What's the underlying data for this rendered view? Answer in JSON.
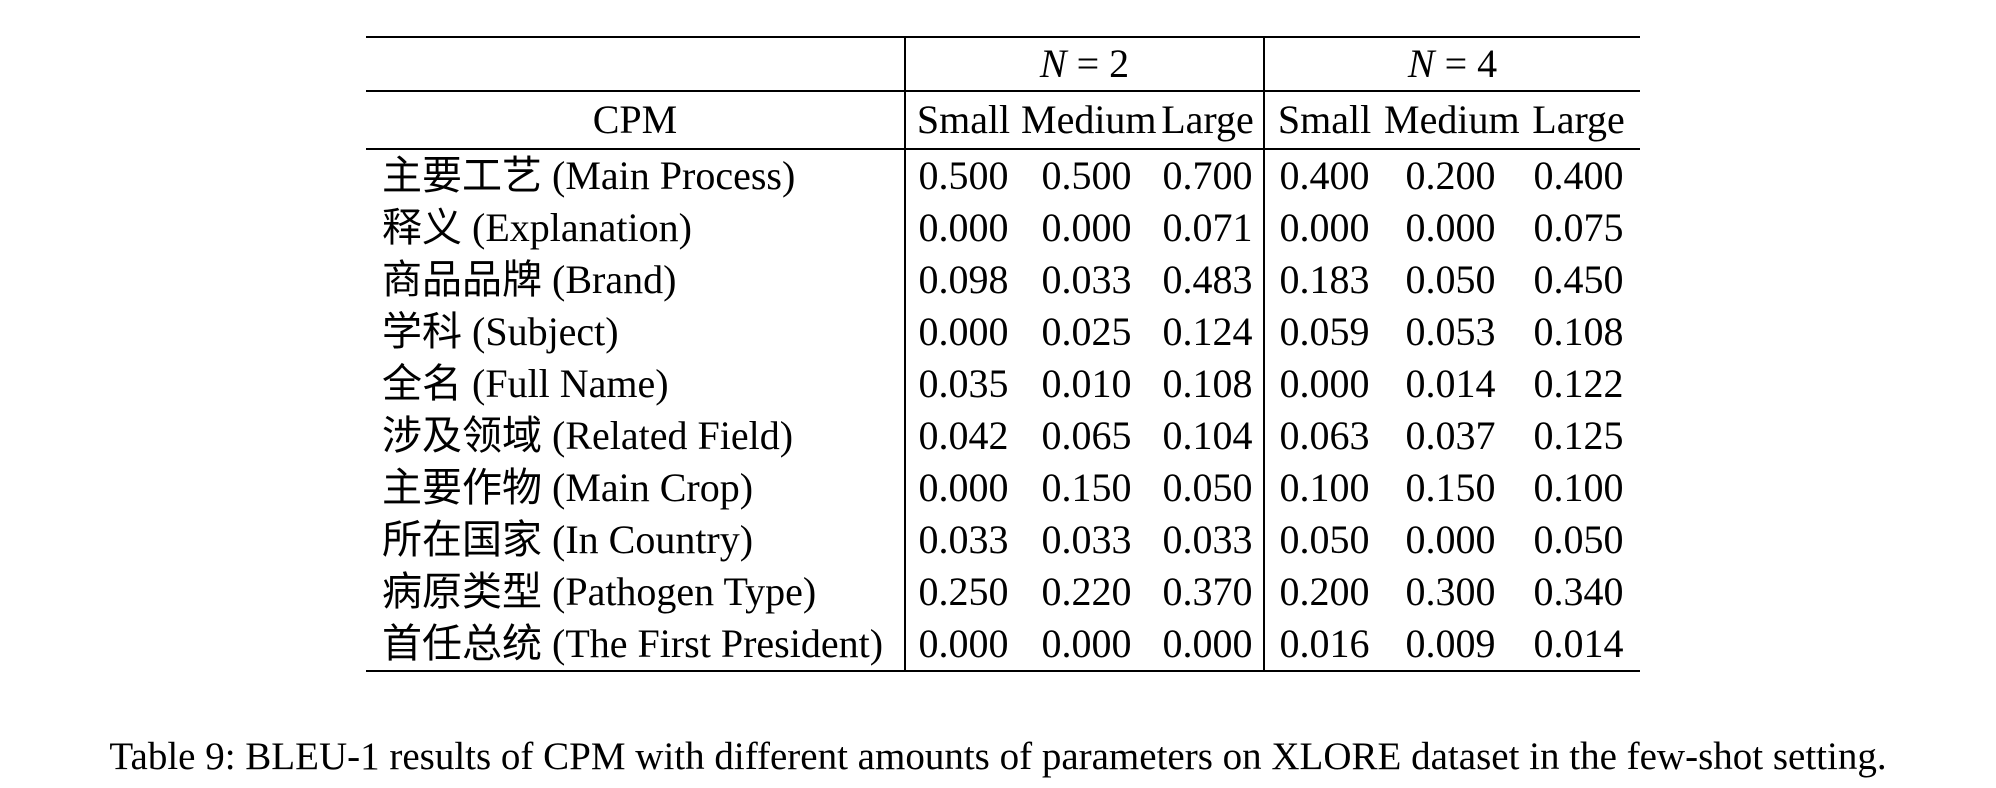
{
  "table": {
    "corner_label": "CPM",
    "groups": [
      {
        "var": "N",
        "rest": " = 2"
      },
      {
        "var": "N",
        "rest": " = 4"
      }
    ],
    "sub_headers": [
      "Small",
      "Medium",
      "Large",
      "Small",
      "Medium",
      "Large"
    ],
    "rows": [
      {
        "label": "主要工艺 (Main Process)",
        "values": [
          {
            "v": "0.500",
            "b": false
          },
          {
            "v": "0.500",
            "b": false
          },
          {
            "v": "0.700",
            "b": true
          },
          {
            "v": "0.400",
            "b": false
          },
          {
            "v": "0.200",
            "b": false
          },
          {
            "v": "0.400",
            "b": true
          }
        ]
      },
      {
        "label": "释义 (Explanation)",
        "values": [
          {
            "v": "0.000",
            "b": false
          },
          {
            "v": "0.000",
            "b": false
          },
          {
            "v": "0.071",
            "b": true
          },
          {
            "v": "0.000",
            "b": false
          },
          {
            "v": "0.000",
            "b": false
          },
          {
            "v": "0.075",
            "b": true
          }
        ]
      },
      {
        "label": "商品品牌 (Brand)",
        "values": [
          {
            "v": "0.098",
            "b": false
          },
          {
            "v": "0.033",
            "b": false
          },
          {
            "v": "0.483",
            "b": true
          },
          {
            "v": "0.183",
            "b": false
          },
          {
            "v": "0.050",
            "b": false
          },
          {
            "v": "0.450",
            "b": true
          }
        ]
      },
      {
        "label": "学科 (Subject)",
        "values": [
          {
            "v": "0.000",
            "b": false
          },
          {
            "v": "0.025",
            "b": false
          },
          {
            "v": "0.124",
            "b": true
          },
          {
            "v": "0.059",
            "b": false
          },
          {
            "v": "0.053",
            "b": false
          },
          {
            "v": "0.108",
            "b": true
          }
        ]
      },
      {
        "label": "全名 (Full Name)",
        "values": [
          {
            "v": "0.035",
            "b": false
          },
          {
            "v": "0.010",
            "b": false
          },
          {
            "v": "0.108",
            "b": true
          },
          {
            "v": "0.000",
            "b": false
          },
          {
            "v": "0.014",
            "b": false
          },
          {
            "v": "0.122",
            "b": true
          }
        ]
      },
      {
        "label": "涉及领域 (Related Field)",
        "values": [
          {
            "v": "0.042",
            "b": false
          },
          {
            "v": "0.065",
            "b": false
          },
          {
            "v": "0.104",
            "b": true
          },
          {
            "v": "0.063",
            "b": false
          },
          {
            "v": "0.037",
            "b": false
          },
          {
            "v": "0.125",
            "b": true
          }
        ]
      },
      {
        "label": "主要作物 (Main Crop)",
        "values": [
          {
            "v": "0.000",
            "b": false
          },
          {
            "v": "0.150",
            "b": true
          },
          {
            "v": "0.050",
            "b": false
          },
          {
            "v": "0.100",
            "b": false
          },
          {
            "v": "0.150",
            "b": true
          },
          {
            "v": "0.100",
            "b": false
          }
        ]
      },
      {
        "label": "所在国家 (In Country)",
        "values": [
          {
            "v": "0.033",
            "b": false
          },
          {
            "v": "0.033",
            "b": false
          },
          {
            "v": "0.033",
            "b": false
          },
          {
            "v": "0.050",
            "b": true
          },
          {
            "v": "0.000",
            "b": false
          },
          {
            "v": "0.050",
            "b": true
          }
        ]
      },
      {
        "label": "病原类型 (Pathogen Type)",
        "values": [
          {
            "v": "0.250",
            "b": false
          },
          {
            "v": "0.220",
            "b": false
          },
          {
            "v": "0.370",
            "b": true
          },
          {
            "v": "0.200",
            "b": false
          },
          {
            "v": "0.300",
            "b": false
          },
          {
            "v": "0.340",
            "b": true
          }
        ]
      },
      {
        "label": "首任总统 (The First President)",
        "values": [
          {
            "v": "0.000",
            "b": false
          },
          {
            "v": "0.000",
            "b": false
          },
          {
            "v": "0.000",
            "b": false
          },
          {
            "v": "0.016",
            "b": true
          },
          {
            "v": "0.009",
            "b": false
          },
          {
            "v": "0.014",
            "b": false
          }
        ]
      }
    ]
  },
  "caption": "Table 9: BLEU-1 results of CPM with different amounts of parameters on XLORE dataset in the few-shot setting."
}
